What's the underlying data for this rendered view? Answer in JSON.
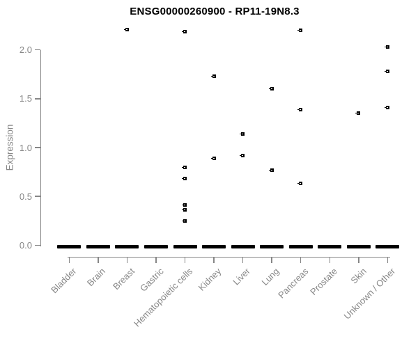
{
  "chart_data": {
    "type": "scatter",
    "title": "ENSG00000260900 - RP11-19N8.3",
    "xlabel": "",
    "ylabel": "Expression",
    "ylim": [
      0.0,
      2.0
    ],
    "yticks": [
      "0.0",
      "0.5",
      "1.0",
      "1.5",
      "2.0"
    ],
    "grid": false,
    "legend": false,
    "marker": "small-black-square",
    "colors": {
      "points": "#000000",
      "axis": "#878787",
      "tick_labels": "#878787",
      "title": "#000000",
      "zero_cluster": "#000000"
    },
    "categories": [
      "Bladder",
      "Brain",
      "Breast",
      "Gastric",
      "Hematopoietic cells",
      "Kidney",
      "Liver",
      "Lung",
      "Pancreas",
      "Prostate",
      "Skin",
      "Unknown / Other"
    ],
    "series": [
      {
        "category": "Bladder",
        "zero_cluster": true,
        "points": []
      },
      {
        "category": "Brain",
        "zero_cluster": true,
        "points": []
      },
      {
        "category": "Breast",
        "zero_cluster": true,
        "points": [
          2.21
        ]
      },
      {
        "category": "Gastric",
        "zero_cluster": true,
        "points": []
      },
      {
        "category": "Hematopoietic cells",
        "zero_cluster": true,
        "points": [
          2.19,
          0.8,
          0.68,
          0.41,
          0.36,
          0.25
        ]
      },
      {
        "category": "Kidney",
        "zero_cluster": true,
        "points": [
          1.73,
          0.89
        ]
      },
      {
        "category": "Liver",
        "zero_cluster": true,
        "points": [
          1.14,
          0.92
        ]
      },
      {
        "category": "Lung",
        "zero_cluster": true,
        "points": [
          1.6,
          0.77
        ]
      },
      {
        "category": "Pancreas",
        "zero_cluster": true,
        "points": [
          2.2,
          1.39,
          0.63
        ]
      },
      {
        "category": "Prostate",
        "zero_cluster": true,
        "points": []
      },
      {
        "category": "Skin",
        "zero_cluster": true,
        "points": [
          1.35
        ]
      },
      {
        "category": "Unknown / Other",
        "zero_cluster": true,
        "points": [
          2.03,
          1.78,
          1.41
        ]
      }
    ]
  }
}
